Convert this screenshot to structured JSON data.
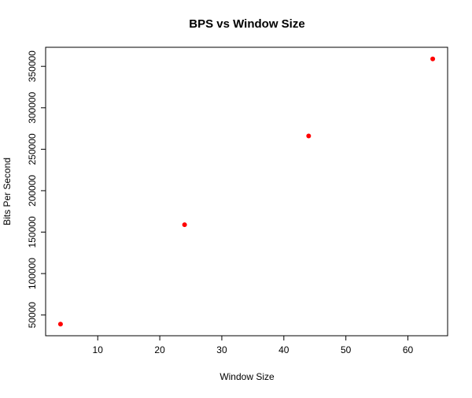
{
  "chart_data": {
    "type": "scatter",
    "title": "BPS vs Window Size",
    "xlabel": "Window Size",
    "ylabel": "Bits Per Second",
    "x": [
      4,
      24,
      44,
      64
    ],
    "y": [
      39000,
      159000,
      266000,
      359000
    ],
    "xlim": [
      1.6,
      66.4
    ],
    "ylim": [
      25000,
      373000
    ],
    "xticks": [
      10,
      20,
      30,
      40,
      50,
      60
    ],
    "xtick_labels": [
      "10",
      "20",
      "30",
      "40",
      "50",
      "60"
    ],
    "yticks": [
      50000,
      100000,
      150000,
      200000,
      250000,
      300000,
      350000
    ],
    "ytick_labels": [
      "50000",
      "100000",
      "150000",
      "200000",
      "250000",
      "300000",
      "350000"
    ],
    "grid": false,
    "legend": "none",
    "point_color": "#ff0000"
  }
}
